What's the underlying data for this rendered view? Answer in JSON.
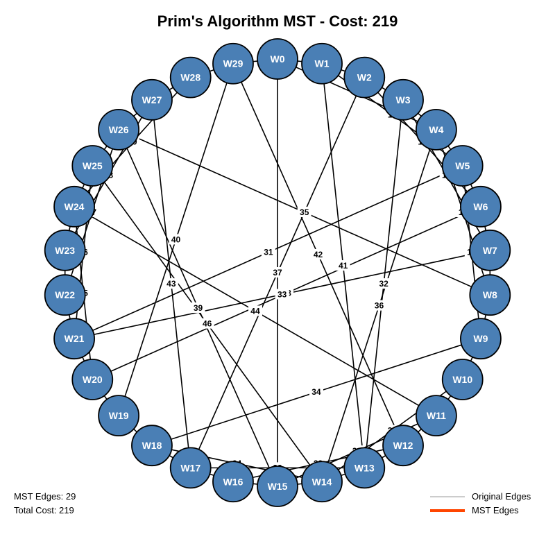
{
  "title": "Prim's Algorithm MST - Cost: 219",
  "stats": {
    "edges_label": "MST Edges:",
    "edges_value": "29",
    "cost_label": "Total Cost:",
    "cost_value": "219"
  },
  "legend": [
    {
      "label": "Original Edges",
      "color": "#cccccc"
    },
    {
      "label": "MST Edges",
      "color": "#ff4500"
    }
  ],
  "colors": {
    "node_fill": "#4a7fb5",
    "node_stroke": "#000000",
    "edge": "#000000",
    "node_text": "#ffffff"
  },
  "nodes": [
    "W0",
    "W1",
    "W2",
    "W3",
    "W4",
    "W5",
    "W6",
    "W7",
    "W8",
    "W9",
    "W10",
    "W11",
    "W12",
    "W13",
    "W14",
    "W15",
    "W16",
    "W17",
    "W18",
    "W19",
    "W20",
    "W21",
    "W22",
    "W23",
    "W24",
    "W25",
    "W26",
    "W27",
    "W28",
    "W29"
  ],
  "edges": [
    {
      "from": "W0",
      "to": "W1",
      "label": ""
    },
    {
      "from": "W1",
      "to": "W2",
      "label": ""
    },
    {
      "from": "W2",
      "to": "W3",
      "label": ""
    },
    {
      "from": "W3",
      "to": "W4",
      "label": ""
    },
    {
      "from": "W4",
      "to": "W5",
      "label": ""
    },
    {
      "from": "W5",
      "to": "W6",
      "label": ""
    },
    {
      "from": "W6",
      "to": "W7",
      "label": ""
    },
    {
      "from": "W7",
      "to": "W8",
      "label": ""
    },
    {
      "from": "W8",
      "to": "W9",
      "label": ""
    },
    {
      "from": "W9",
      "to": "W10",
      "label": ""
    },
    {
      "from": "W10",
      "to": "W11",
      "label": ""
    },
    {
      "from": "W11",
      "to": "W12",
      "label": ""
    },
    {
      "from": "W12",
      "to": "W13",
      "label": ""
    },
    {
      "from": "W13",
      "to": "W14",
      "label": ""
    },
    {
      "from": "W14",
      "to": "W15",
      "label": ""
    },
    {
      "from": "W15",
      "to": "W16",
      "label": ""
    },
    {
      "from": "W16",
      "to": "W17",
      "label": ""
    },
    {
      "from": "W17",
      "to": "W18",
      "label": ""
    },
    {
      "from": "W18",
      "to": "W19",
      "label": ""
    },
    {
      "from": "W19",
      "to": "W20",
      "label": ""
    },
    {
      "from": "W20",
      "to": "W21",
      "label": ""
    },
    {
      "from": "W21",
      "to": "W22",
      "label": ""
    },
    {
      "from": "W22",
      "to": "W23",
      "label": ""
    },
    {
      "from": "W23",
      "to": "W24",
      "label": ""
    },
    {
      "from": "W24",
      "to": "W25",
      "label": ""
    },
    {
      "from": "W25",
      "to": "W26",
      "label": ""
    },
    {
      "from": "W26",
      "to": "W27",
      "label": ""
    },
    {
      "from": "W27",
      "to": "W28",
      "label": ""
    },
    {
      "from": "W28",
      "to": "W29",
      "label": ""
    },
    {
      "from": "W29",
      "to": "W0",
      "label": ""
    },
    {
      "from": "W0",
      "to": "W4",
      "label": ""
    },
    {
      "from": "W1",
      "to": "W5",
      "label": "15"
    },
    {
      "from": "W2",
      "to": "W6",
      "label": "16"
    },
    {
      "from": "W3",
      "to": "W7",
      "label": "17"
    },
    {
      "from": "W4",
      "to": "W8",
      "label": "18"
    },
    {
      "from": "W5",
      "to": "W9",
      "label": "19"
    },
    {
      "from": "W10",
      "to": "W14",
      "label": "20"
    },
    {
      "from": "W11",
      "to": "W15",
      "label": "21"
    },
    {
      "from": "W12",
      "to": "W16",
      "label": "22"
    },
    {
      "from": "W13",
      "to": "W17",
      "label": "23"
    },
    {
      "from": "W14",
      "to": "W18",
      "label": "24"
    },
    {
      "from": "W20",
      "to": "W24",
      "label": "25"
    },
    {
      "from": "W21",
      "to": "W25",
      "label": "26"
    },
    {
      "from": "W22",
      "to": "W26",
      "label": "27"
    },
    {
      "from": "W23",
      "to": "W27",
      "label": "28"
    },
    {
      "from": "W24",
      "to": "W28",
      "label": "29"
    },
    {
      "from": "W0",
      "to": "W15",
      "label": "30"
    },
    {
      "from": "W1",
      "to": "W13",
      "label": "41"
    },
    {
      "from": "W2",
      "to": "W17",
      "label": "37"
    },
    {
      "from": "W3",
      "to": "W13",
      "label": "32"
    },
    {
      "from": "W4",
      "to": "W14",
      "label": "36"
    },
    {
      "from": "W5",
      "to": "W21",
      "label": "31"
    },
    {
      "from": "W6",
      "to": "W20",
      "label": "38"
    },
    {
      "from": "W7",
      "to": "W21",
      "label": "33"
    },
    {
      "from": "W9",
      "to": "W18",
      "label": "34"
    },
    {
      "from": "W11",
      "to": "W24",
      "label": "44"
    },
    {
      "from": "W12",
      "to": "W29",
      "label": "42"
    },
    {
      "from": "W14",
      "to": "W25",
      "label": "46"
    },
    {
      "from": "W15",
      "to": "W26",
      "label": "39"
    },
    {
      "from": "W17",
      "to": "W27",
      "label": "43"
    },
    {
      "from": "W19",
      "to": "W29",
      "label": "40"
    },
    {
      "from": "W8",
      "to": "W26",
      "label": "35"
    }
  ]
}
